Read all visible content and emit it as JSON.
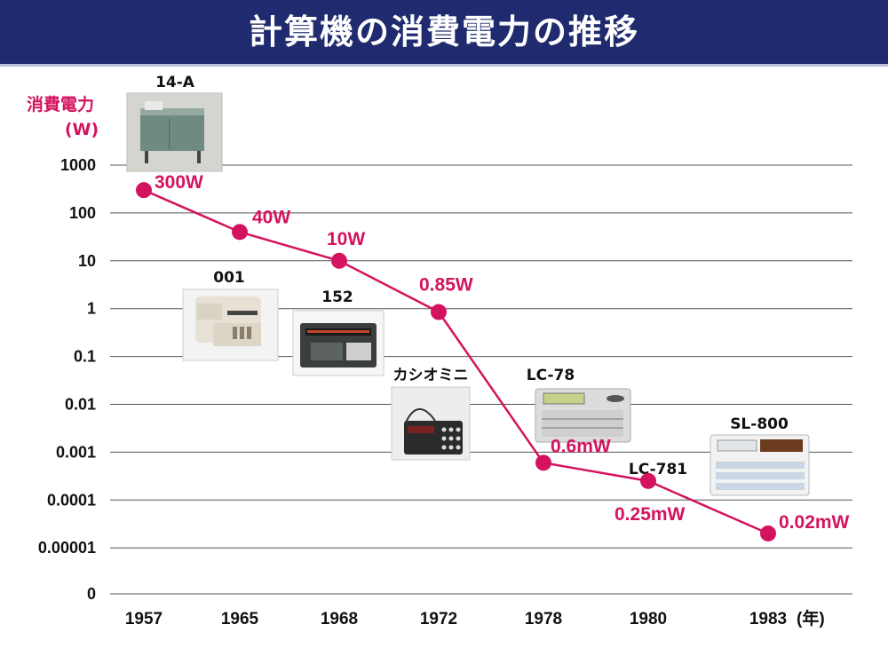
{
  "title": "計算機の消費電力の推移",
  "chart_data": {
    "type": "line",
    "ylabel_line1": "消費電力",
    "ylabel_line2": "(W)",
    "y_scale": "log",
    "y_ticks": [
      "1000",
      "100",
      "10",
      "1",
      "0.1",
      "0.01",
      "0.001",
      "0.0001",
      "0.00001",
      "0"
    ],
    "x_categories": [
      "1957",
      "1965",
      "1968",
      "1972",
      "1978",
      "1980",
      "1983"
    ],
    "x_unit": "(年)",
    "series": [
      {
        "values": [
          300,
          40,
          10,
          0.85,
          0.0006,
          0.00025,
          2e-05
        ],
        "labels": [
          "300W",
          "40W",
          "10W",
          "0.85W",
          "0.6mW",
          "0.25mW",
          "0.02mW"
        ]
      }
    ],
    "models": [
      "14-A",
      "001",
      "152",
      "カシオミニ",
      "LC-78",
      "LC-781",
      "SL-800"
    ],
    "line_color": "#d4135f",
    "grid": true
  }
}
